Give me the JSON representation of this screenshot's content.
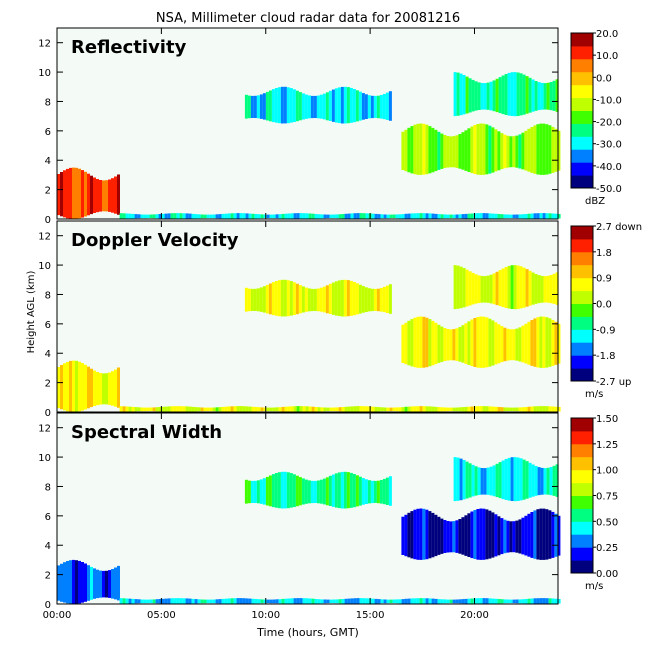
{
  "chart_data": {
    "type": "heatmap",
    "title": "NSA, Millimeter cloud radar data for 20081216",
    "xlabel": "Time (hours, GMT)",
    "ylabel": "Height AGL (km)",
    "x_ticks": [
      "00:00",
      "05:00",
      "10:00",
      "15:00",
      "20:00"
    ],
    "x_tick_hours": [
      0,
      5,
      10,
      15,
      20
    ],
    "xlim": [
      0,
      24
    ],
    "ylim": [
      0,
      13
    ],
    "y_ticks": [
      0,
      2,
      4,
      6,
      8,
      10,
      12
    ],
    "panels": [
      {
        "name": "Reflectivity",
        "unit": "dBZ",
        "colorbar_range": [
          -50,
          20
        ],
        "colorbar_labels": [
          "20.0",
          "10.0",
          "0.0",
          "-10.0",
          "-20.0",
          "-30.0",
          "-40.0",
          "-50.0"
        ],
        "cloud_regions": [
          {
            "time_hours": [
              0.0,
              3.0
            ],
            "height_km": [
              0.0,
              3.5
            ],
            "value": 10
          },
          {
            "time_hours": [
              3.0,
              24.0
            ],
            "height_km": [
              0.0,
              0.4
            ],
            "value": -30
          },
          {
            "time_hours": [
              9.0,
              16.0
            ],
            "height_km": [
              6.5,
              9.0
            ],
            "value": -30
          },
          {
            "time_hours": [
              16.5,
              24.0
            ],
            "height_km": [
              3.0,
              6.5
            ],
            "value": -15
          },
          {
            "time_hours": [
              19.0,
              24.0
            ],
            "height_km": [
              7.0,
              10.0
            ],
            "value": -25
          }
        ]
      },
      {
        "name": "Doppler Velocity",
        "unit": "m/s",
        "colorbar_range": [
          -2.7,
          2.7
        ],
        "colorbar_labels": [
          "2.7 down",
          "1.8",
          "0.9",
          "0.0",
          "-0.9",
          "-1.8",
          "-2.7 up"
        ],
        "cloud_regions": [
          {
            "time_hours": [
              0.0,
              3.0
            ],
            "height_km": [
              0.0,
              3.5
            ],
            "value": 0.7
          },
          {
            "time_hours": [
              3.0,
              24.0
            ],
            "height_km": [
              0.0,
              0.4
            ],
            "value": 0.5
          },
          {
            "time_hours": [
              9.0,
              16.0
            ],
            "height_km": [
              6.5,
              9.0
            ],
            "value": 0.5
          },
          {
            "time_hours": [
              16.5,
              24.0
            ],
            "height_km": [
              3.0,
              6.5
            ],
            "value": 0.6
          },
          {
            "time_hours": [
              19.0,
              24.0
            ],
            "height_km": [
              7.0,
              10.0
            ],
            "value": 0.5
          }
        ]
      },
      {
        "name": "Spectral Width",
        "unit": "m/s",
        "colorbar_range": [
          0,
          1.5
        ],
        "colorbar_labels": [
          "1.50",
          "1.25",
          "1.00",
          "0.75",
          "0.50",
          "0.25",
          "0.00"
        ],
        "cloud_regions": [
          {
            "time_hours": [
              0.0,
              3.0
            ],
            "height_km": [
              0.0,
              3.0
            ],
            "value": 0.25
          },
          {
            "time_hours": [
              3.0,
              24.0
            ],
            "height_km": [
              0.0,
              0.4
            ],
            "value": 0.4
          },
          {
            "time_hours": [
              9.0,
              16.0
            ],
            "height_km": [
              6.5,
              9.0
            ],
            "value": 0.55
          },
          {
            "time_hours": [
              16.5,
              24.0
            ],
            "height_km": [
              3.0,
              6.5
            ],
            "value": 0.15
          },
          {
            "time_hours": [
              19.0,
              24.0
            ],
            "height_km": [
              7.0,
              10.0
            ],
            "value": 0.45
          }
        ]
      }
    ]
  },
  "colors": {
    "background": "#f4fbf6",
    "colormap": [
      "#00007f",
      "#0000ff",
      "#0080ff",
      "#00ffff",
      "#00ff80",
      "#40ff00",
      "#c0ff00",
      "#ffff00",
      "#ffc000",
      "#ff8000",
      "#ff2000",
      "#a00000"
    ]
  }
}
